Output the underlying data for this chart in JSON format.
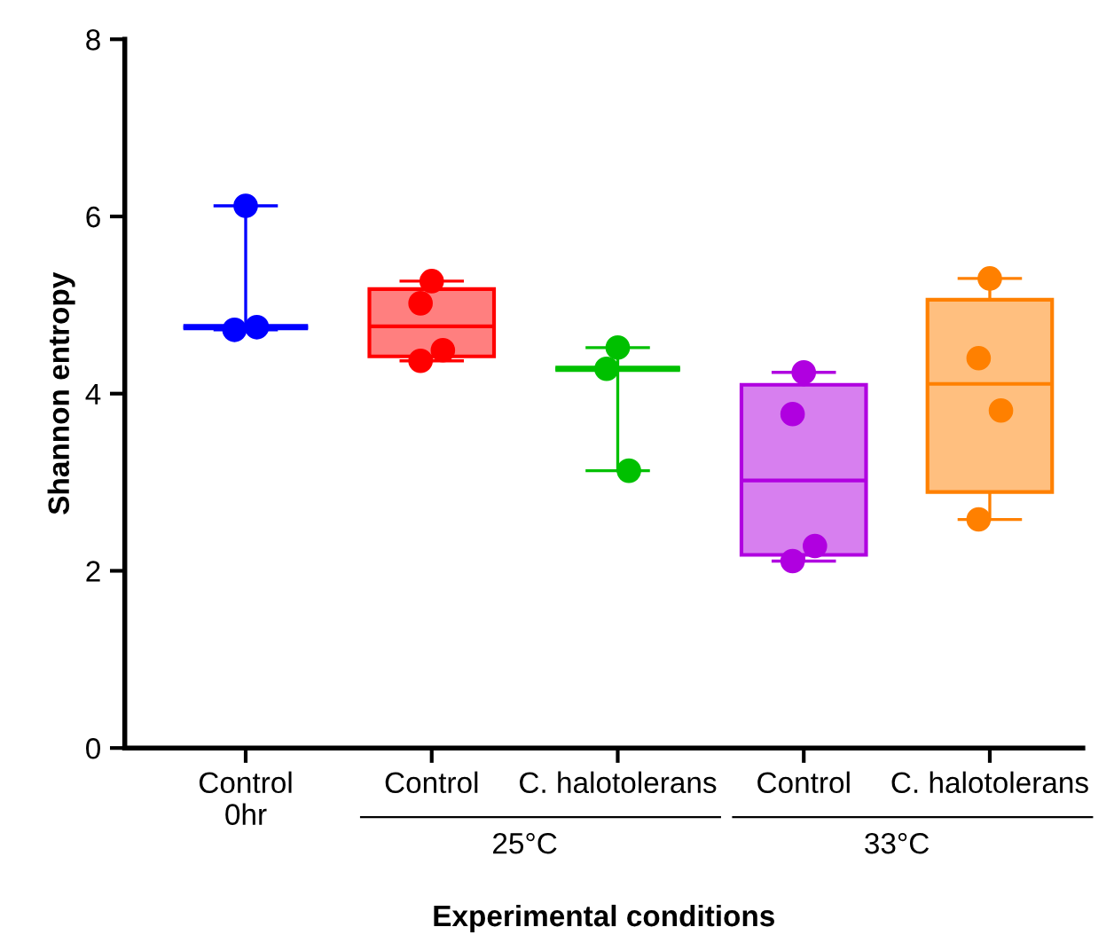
{
  "chart_data": {
    "type": "box",
    "xlabel": "Experimental conditions",
    "ylabel": "Shannon entropy",
    "categories": [
      "Control\n0hr",
      "Control",
      "C. halotolerans",
      "Control",
      "C. halotolerans"
    ],
    "ylim": [
      0,
      8
    ],
    "yticks": [
      0,
      2,
      4,
      6,
      8
    ],
    "grid": false,
    "legend": false,
    "annotations": [
      "25°C",
      "33°C"
    ],
    "colors": [
      "#0000ff",
      "#ff0000",
      "#00c000",
      "#b000e0",
      "#ff8000"
    ],
    "boxes": [
      {
        "low": 4.72,
        "q1": 4.75,
        "median": 4.75,
        "q3": 4.75,
        "high": 6.12
      },
      {
        "low": 4.37,
        "q1": 4.42,
        "median": 4.76,
        "q3": 5.18,
        "high": 5.27
      },
      {
        "low": 3.13,
        "q1": 4.28,
        "median": 4.28,
        "q3": 4.28,
        "high": 4.52
      },
      {
        "low": 2.11,
        "q1": 2.18,
        "median": 3.02,
        "q3": 4.1,
        "high": 4.24
      },
      {
        "low": 2.58,
        "q1": 2.89,
        "median": 4.11,
        "q3": 5.06,
        "high": 5.3
      }
    ],
    "series": [
      {
        "type": "scatter",
        "colors": [
          "#0000ff",
          "#ff0000",
          "#00c000",
          "#b000e0",
          "#ff8000"
        ],
        "values": [
          6.12,
          5.27,
          4.52,
          4.24,
          5.3
        ]
      },
      {
        "type": "scatter",
        "colors": [
          "#0000ff",
          "#ff0000",
          "#00c000",
          "#b000e0",
          "#ff8000"
        ],
        "values": [
          4.72,
          5.02,
          4.28,
          3.77,
          4.4
        ]
      },
      {
        "type": "scatter",
        "colors": [
          "#0000ff",
          "#ff0000",
          "#00c000",
          "#b000e0",
          "#ff8000"
        ],
        "values": [
          4.75,
          4.49,
          3.13,
          2.28,
          3.81
        ]
      },
      {
        "type": "scatter",
        "colors": [
          "#0000ff",
          "#ff0000",
          "#00c000",
          "#b000e0",
          "#ff8000"
        ],
        "values": [
          null,
          4.37,
          null,
          2.11,
          2.58
        ]
      }
    ]
  }
}
